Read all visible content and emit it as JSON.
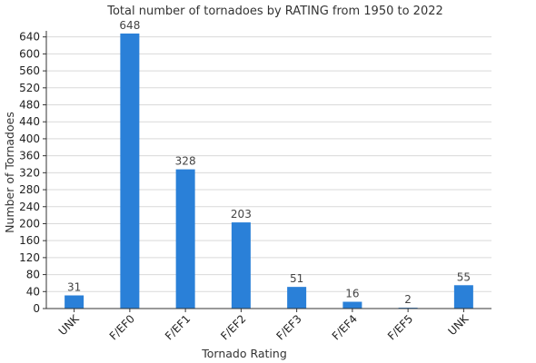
{
  "chart_data": {
    "type": "bar",
    "title": "Total number of tornadoes by RATING from 1950 to 2022",
    "xlabel": "Tornado Rating",
    "ylabel": "Number of Tornadoes",
    "categories": [
      "UNK",
      "F/EF0",
      "F/EF1",
      "F/EF2",
      "F/EF3",
      "F/EF4",
      "F/EF5",
      "UNK"
    ],
    "values": [
      31,
      648,
      328,
      203,
      51,
      16,
      2,
      55
    ],
    "data_labels": [
      "31",
      "648",
      "328",
      "203",
      "51",
      "16",
      "2",
      "55"
    ],
    "ylim": [
      0,
      650
    ],
    "yticks": [
      0,
      40,
      80,
      120,
      160,
      200,
      240,
      280,
      320,
      360,
      400,
      440,
      480,
      520,
      560,
      600,
      640
    ],
    "ytick_labels": [
      "0",
      "40",
      "80",
      "120",
      "160",
      "200",
      "240",
      "280",
      "320",
      "360",
      "400",
      "440",
      "480",
      "520",
      "560",
      "600",
      "640"
    ],
    "grid": true,
    "legend": "none",
    "colors": {
      "bar": "#2a80d8",
      "grid": "#d9d9d9",
      "axis": "#333333",
      "text": "#333333"
    }
  }
}
